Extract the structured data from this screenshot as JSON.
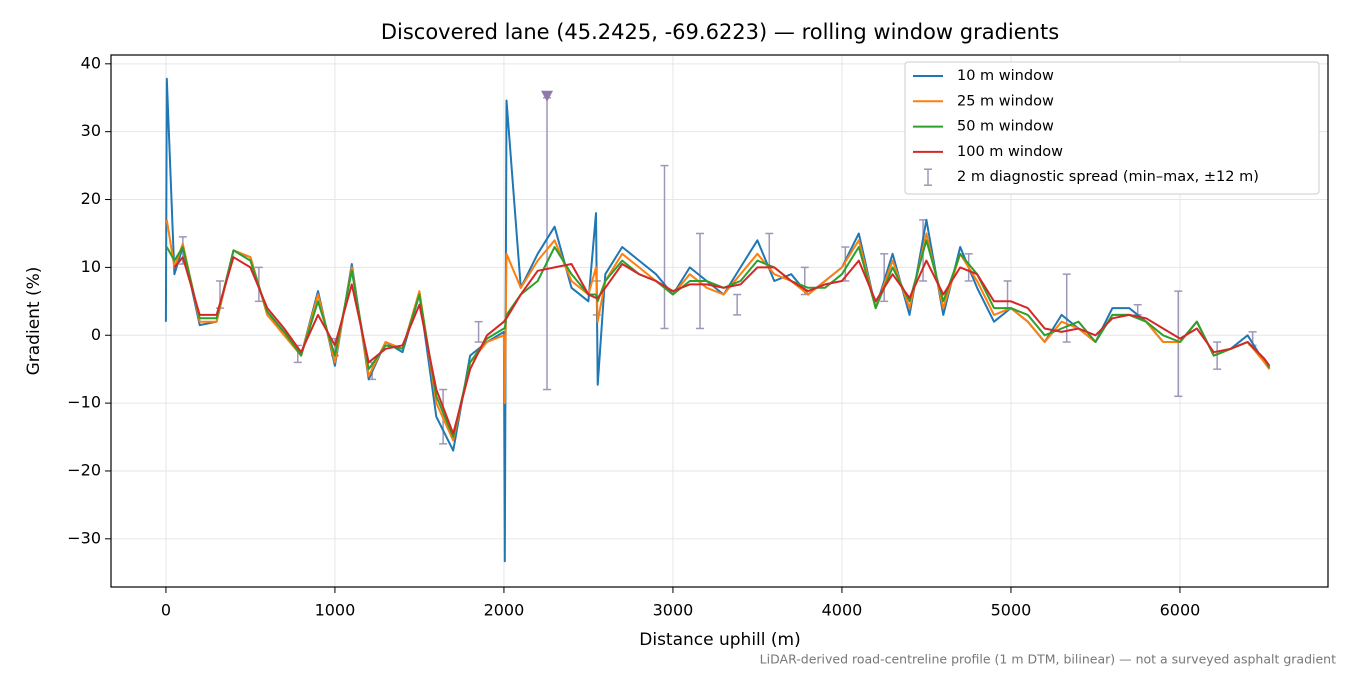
{
  "chart_data": {
    "type": "line",
    "title": "Discovered lane (45.2425, -69.6223) — rolling window gradients",
    "xlabel": "Distance uphill (m)",
    "ylabel": "Gradient (%)",
    "footnote": "LiDAR-derived road-centreline profile (1 m DTM, bilinear) — not a surveyed asphalt gradient",
    "xlim": [
      -325,
      6876
    ],
    "ylim": [
      -37.1,
      41.3
    ],
    "xticks": [
      0,
      1000,
      2000,
      3000,
      4000,
      5000,
      6000
    ],
    "yticks": [
      {
        "value": -30,
        "label": "−30"
      },
      {
        "value": -20,
        "label": "−20"
      },
      {
        "value": -10,
        "label": "−10"
      },
      0,
      10,
      20,
      30,
      40
    ],
    "grid": true,
    "legend": "upper right",
    "x": [
      0,
      5,
      50,
      100,
      200,
      300,
      400,
      500,
      600,
      700,
      800,
      900,
      1000,
      1100,
      1200,
      1300,
      1400,
      1500,
      1600,
      1700,
      1800,
      1900,
      2000,
      2005,
      2015,
      2100,
      2200,
      2300,
      2400,
      2500,
      2545,
      2555,
      2600,
      2700,
      2800,
      2900,
      3000,
      3100,
      3200,
      3300,
      3400,
      3500,
      3600,
      3700,
      3800,
      3900,
      4000,
      4100,
      4200,
      4300,
      4400,
      4500,
      4600,
      4700,
      4800,
      4900,
      5000,
      5100,
      5200,
      5300,
      5400,
      5500,
      5600,
      5700,
      5800,
      5900,
      6000,
      6100,
      6200,
      6300,
      6400,
      6500,
      6530
    ],
    "series": [
      {
        "name": "10 m window",
        "color": "#1f77b4",
        "values": [
          2,
          37.8,
          9,
          13,
          1.5,
          2,
          12.5,
          11.5,
          3,
          0.5,
          -3,
          6.5,
          -4.5,
          10.5,
          -6.5,
          -1,
          -2.5,
          6,
          -12,
          -17,
          -3,
          -1,
          0.5,
          -33.3,
          34.6,
          7,
          12,
          16,
          7,
          5,
          18,
          -7.3,
          9,
          13,
          11,
          9,
          6,
          10,
          8,
          6,
          10,
          14,
          8,
          9,
          6,
          8,
          10,
          15,
          4,
          12,
          3,
          17,
          3,
          13,
          7,
          2,
          4,
          2,
          -1,
          3,
          1,
          -1,
          4,
          4,
          2,
          -1,
          -1,
          2,
          -3,
          -2,
          0,
          -4,
          -5
        ]
      },
      {
        "name": "25 m window",
        "color": "#ff7f0e",
        "values": [
          null,
          17,
          10,
          13.5,
          2,
          2,
          12.5,
          11.5,
          3,
          0,
          -3,
          6,
          -4,
          10,
          -6,
          -1,
          -2,
          6.5,
          -10,
          -15.5,
          -4,
          -1,
          0,
          -10,
          12,
          7,
          11,
          14,
          8,
          6,
          10,
          2,
          8,
          12,
          10,
          8,
          6,
          9,
          7,
          6,
          9,
          12,
          9,
          8,
          6,
          8,
          10,
          14,
          4,
          11,
          4,
          15,
          4,
          12,
          8,
          3,
          4,
          2,
          -1,
          2,
          1,
          -1,
          3,
          3,
          2,
          -1,
          -1,
          2,
          -3,
          -2,
          -1,
          -4,
          -5
        ]
      },
      {
        "name": "50 m window",
        "color": "#2ca02c",
        "values": [
          null,
          13,
          11,
          13,
          2.5,
          2.5,
          12.5,
          11,
          3.5,
          0.5,
          -3,
          5,
          -3,
          9.5,
          -5,
          -1.5,
          -2,
          6,
          -9,
          -15,
          -4,
          -0.5,
          1,
          1,
          3,
          6,
          8,
          13,
          9,
          6,
          6,
          5,
          8,
          11,
          9,
          8,
          6,
          8,
          8,
          7,
          8,
          11,
          10,
          8,
          7,
          7,
          9,
          13,
          4,
          10,
          5,
          14,
          5,
          12,
          9,
          4,
          4,
          3,
          0,
          1,
          2,
          -1,
          3,
          3,
          2,
          0,
          -1,
          2,
          -3,
          -2,
          -1,
          -3.5,
          -4.8
        ]
      },
      {
        "name": "100 m window",
        "color": "#d62728",
        "values": [
          null,
          null,
          10,
          11.5,
          3,
          3,
          11.5,
          10,
          4,
          1,
          -2.5,
          3,
          -1.5,
          7.5,
          -4,
          -2,
          -1.5,
          4.5,
          -8,
          -14.5,
          -5,
          0,
          2,
          2.2,
          2.5,
          6,
          9.5,
          10,
          10.5,
          6,
          5.5,
          5.5,
          7,
          10.5,
          9,
          8,
          6.5,
          7.5,
          7.5,
          7,
          7.5,
          10,
          10,
          8,
          6.5,
          7.5,
          8,
          11,
          5,
          9,
          5.5,
          11,
          6,
          10,
          9,
          5,
          5,
          4,
          1,
          0.5,
          1,
          0,
          2.5,
          3,
          2.5,
          1,
          -0.5,
          1,
          -2.5,
          -2,
          -1,
          -3.5,
          -4.5
        ]
      }
    ],
    "errorbars": {
      "name": "2 m diagnostic spread (min–max, ±12 m)",
      "color": "#9e97b8",
      "x": [
        100,
        320,
        550,
        780,
        1000,
        1220,
        1640,
        1850,
        2255,
        2550,
        2950,
        3160,
        3380,
        3570,
        3780,
        4020,
        4250,
        4480,
        4750,
        4980,
        5330,
        5750,
        5990,
        6220,
        6430
      ],
      "low": [
        10.5,
        4,
        5,
        -4,
        -3,
        -6.5,
        -16,
        -1,
        -8,
        3,
        1,
        1,
        3,
        10,
        6,
        8,
        5,
        8,
        8,
        4,
        -1,
        3,
        -9,
        -5,
        -1.5
      ],
      "high": [
        14.5,
        8,
        10,
        -1.5,
        -0.5,
        -4,
        -8,
        2,
        35,
        8,
        25,
        15,
        6,
        15,
        10,
        13,
        12,
        17,
        12,
        8,
        9,
        4.5,
        6.5,
        -1,
        0.5
      ]
    },
    "marker": {
      "x": 2255,
      "y": 35.3,
      "color": "#8e79a8"
    }
  }
}
